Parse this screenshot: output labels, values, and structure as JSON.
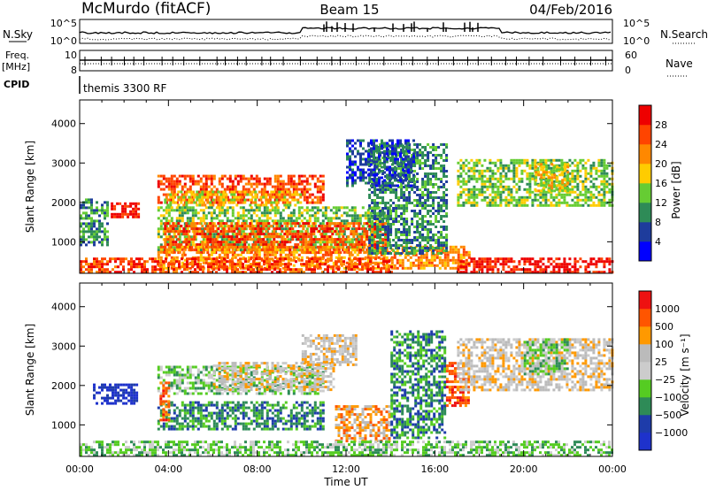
{
  "header": {
    "station": "McMurdo (fitACF)",
    "beam": "Beam 15",
    "date": "04/Feb/2016"
  },
  "top_panels": {
    "nsky": {
      "label": "N.Sky",
      "tick_hi": "10^5",
      "tick_lo": "10^0"
    },
    "nsearch": {
      "label": "N.Search",
      "tick_hi": "10^5",
      "tick_lo": "10^0"
    },
    "freq": {
      "label1": "Freq.",
      "label2": "[MHz]",
      "tick_hi": "10",
      "tick_lo": "8"
    },
    "nave": {
      "label": "Nave",
      "tick_hi": "60",
      "tick_lo": "0"
    },
    "cpid": {
      "label": "CPID",
      "value": "themis 3300 RF"
    }
  },
  "colors": {
    "power": [
      "#0000ff",
      "#1e3c9c",
      "#2e8b57",
      "#66cc33",
      "#ffcc00",
      "#ff8800",
      "#ff4400",
      "#ee0000"
    ],
    "velocity": [
      "#ee1111",
      "#ff5500",
      "#ff9900",
      "#bbbbbb",
      "#cccccc",
      "#55cc22",
      "#2e8b57",
      "#1e3caa",
      "#1e32cc"
    ]
  },
  "chart_data": [
    {
      "type": "heatmap",
      "name": "power",
      "ylabel": "Slant Range [km]",
      "ylim": [
        200,
        4600
      ],
      "yticks": [
        "1000",
        "2000",
        "3000",
        "4000"
      ],
      "xlim": [
        0,
        24
      ],
      "colorbar": {
        "label": "Power [dB]",
        "ticks": [
          "4",
          "8",
          "12",
          "16",
          "20",
          "24",
          "28"
        ]
      },
      "regions": [
        {
          "t0": 1.4,
          "t1": 2.6,
          "r0": 1600,
          "r1": 2000,
          "c": 7
        },
        {
          "t0": 3.5,
          "t1": 11.0,
          "r0": 2000,
          "r1": 2700,
          "c": 6
        },
        {
          "t0": 3.8,
          "t1": 10.0,
          "r0": 1900,
          "r1": 2300,
          "c": 4
        },
        {
          "t0": 3.5,
          "t1": 14.0,
          "r0": 800,
          "r1": 1900,
          "c": 3
        },
        {
          "t0": 3.8,
          "t1": 13.8,
          "r0": 750,
          "r1": 1500,
          "c": 6
        },
        {
          "t0": 3.5,
          "t1": 17.5,
          "r0": 300,
          "r1": 900,
          "c": 5
        },
        {
          "t0": 0.0,
          "t1": 14.0,
          "r0": 250,
          "r1": 600,
          "c": 6
        },
        {
          "t0": 17.0,
          "t1": 24.0,
          "r0": 250,
          "r1": 600,
          "c": 7
        },
        {
          "t0": 0.0,
          "t1": 1.3,
          "r0": 900,
          "r1": 2100,
          "c": 2
        },
        {
          "t0": 13.0,
          "t1": 16.5,
          "r0": 700,
          "r1": 3500,
          "c": 2
        },
        {
          "t0": 17.0,
          "t1": 24.0,
          "r0": 1900,
          "r1": 3100,
          "c": 3
        },
        {
          "t0": 20.5,
          "t1": 22.0,
          "r0": 2300,
          "r1": 3000,
          "c": 4
        },
        {
          "t0": 12.0,
          "t1": 15.0,
          "r0": 2400,
          "r1": 3600,
          "c": 1
        }
      ]
    },
    {
      "type": "heatmap",
      "name": "velocity",
      "ylabel": "Slant Range [km]",
      "ylim": [
        200,
        4600
      ],
      "yticks": [
        "1000",
        "2000",
        "3000",
        "4000"
      ],
      "xlim": [
        0,
        24
      ],
      "xticks": [
        "00:00",
        "04:00",
        "08:00",
        "12:00",
        "16:00",
        "20:00",
        "00:00"
      ],
      "xlabel": "Time UT",
      "colorbar": {
        "label": "Velocity [m s⁻¹]",
        "ticks": [
          "1000",
          "500",
          "100",
          "25",
          "−25",
          "−100",
          "−500",
          "−1000"
        ]
      },
      "regions": [
        {
          "t0": 0.6,
          "t1": 2.6,
          "r0": 1550,
          "r1": 2050,
          "c": 8
        },
        {
          "t0": 3.5,
          "t1": 11.0,
          "r0": 900,
          "r1": 1600,
          "c": 6
        },
        {
          "t0": 3.5,
          "t1": 11.0,
          "r0": 1800,
          "r1": 2500,
          "c": 5
        },
        {
          "t0": 6.0,
          "t1": 11.5,
          "r0": 1900,
          "r1": 2600,
          "c": 3
        },
        {
          "t0": 10.0,
          "t1": 12.5,
          "r0": 2500,
          "r1": 3300,
          "c": 3
        },
        {
          "t0": 11.5,
          "t1": 14.0,
          "r0": 600,
          "r1": 1500,
          "c": 2
        },
        {
          "t0": 3.6,
          "t1": 4.0,
          "r0": 1100,
          "r1": 2100,
          "c": 1
        },
        {
          "t0": 14.0,
          "t1": 16.5,
          "r0": 700,
          "r1": 3400,
          "c": 6
        },
        {
          "t0": 0.0,
          "t1": 24.0,
          "r0": 250,
          "r1": 600,
          "c": 5
        },
        {
          "t0": 16.5,
          "t1": 17.5,
          "r0": 1500,
          "r1": 2600,
          "c": 1
        },
        {
          "t0": 17.0,
          "t1": 24.0,
          "r0": 1900,
          "r1": 3200,
          "c": 3
        },
        {
          "t0": 20.0,
          "t1": 22.0,
          "r0": 2300,
          "r1": 3200,
          "c": 5
        }
      ]
    }
  ]
}
